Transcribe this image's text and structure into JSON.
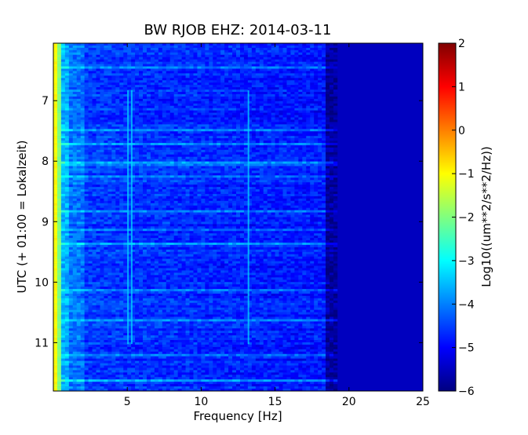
{
  "chart_data": {
    "type": "heatmap",
    "title": "BW RJOB EHZ: 2014-03-11",
    "xlabel": "Frequency [Hz]",
    "ylabel": "UTC (+ 01:00 = Lokalzeit)",
    "colorbar_label": "Log10((um**2/s**2/Hz))",
    "xlim": [
      0,
      25
    ],
    "ylim": [
      6.05,
      11.8
    ],
    "y_inverted": true,
    "x_ticks": [
      5,
      10,
      15,
      20,
      25
    ],
    "x_tick_labels": [
      "5",
      "10",
      "15",
      "20",
      "25"
    ],
    "y_ticks": [
      7,
      8,
      9,
      10,
      11
    ],
    "y_tick_labels": [
      "7",
      "8",
      "9",
      "10",
      "11"
    ],
    "colorbar_range": [
      -6,
      2
    ],
    "colorbar_ticks": [
      2,
      1,
      0,
      -1,
      -2,
      -3,
      -4,
      -5,
      -6
    ],
    "colorbar_tick_labels": [
      "2",
      "1",
      "0",
      "−1",
      "−2",
      "−3",
      "−4",
      "−5",
      "−6"
    ],
    "colormap": "jet",
    "colormap_stops": [
      "#000080",
      "#0000ff",
      "#00ffff",
      "#ffff00",
      "#ff0000",
      "#800000"
    ],
    "bright_lines_hz": [
      5.05,
      5.3,
      13.2
    ],
    "background_level": -5.5,
    "energy_falloff_hz": 18.5
  }
}
